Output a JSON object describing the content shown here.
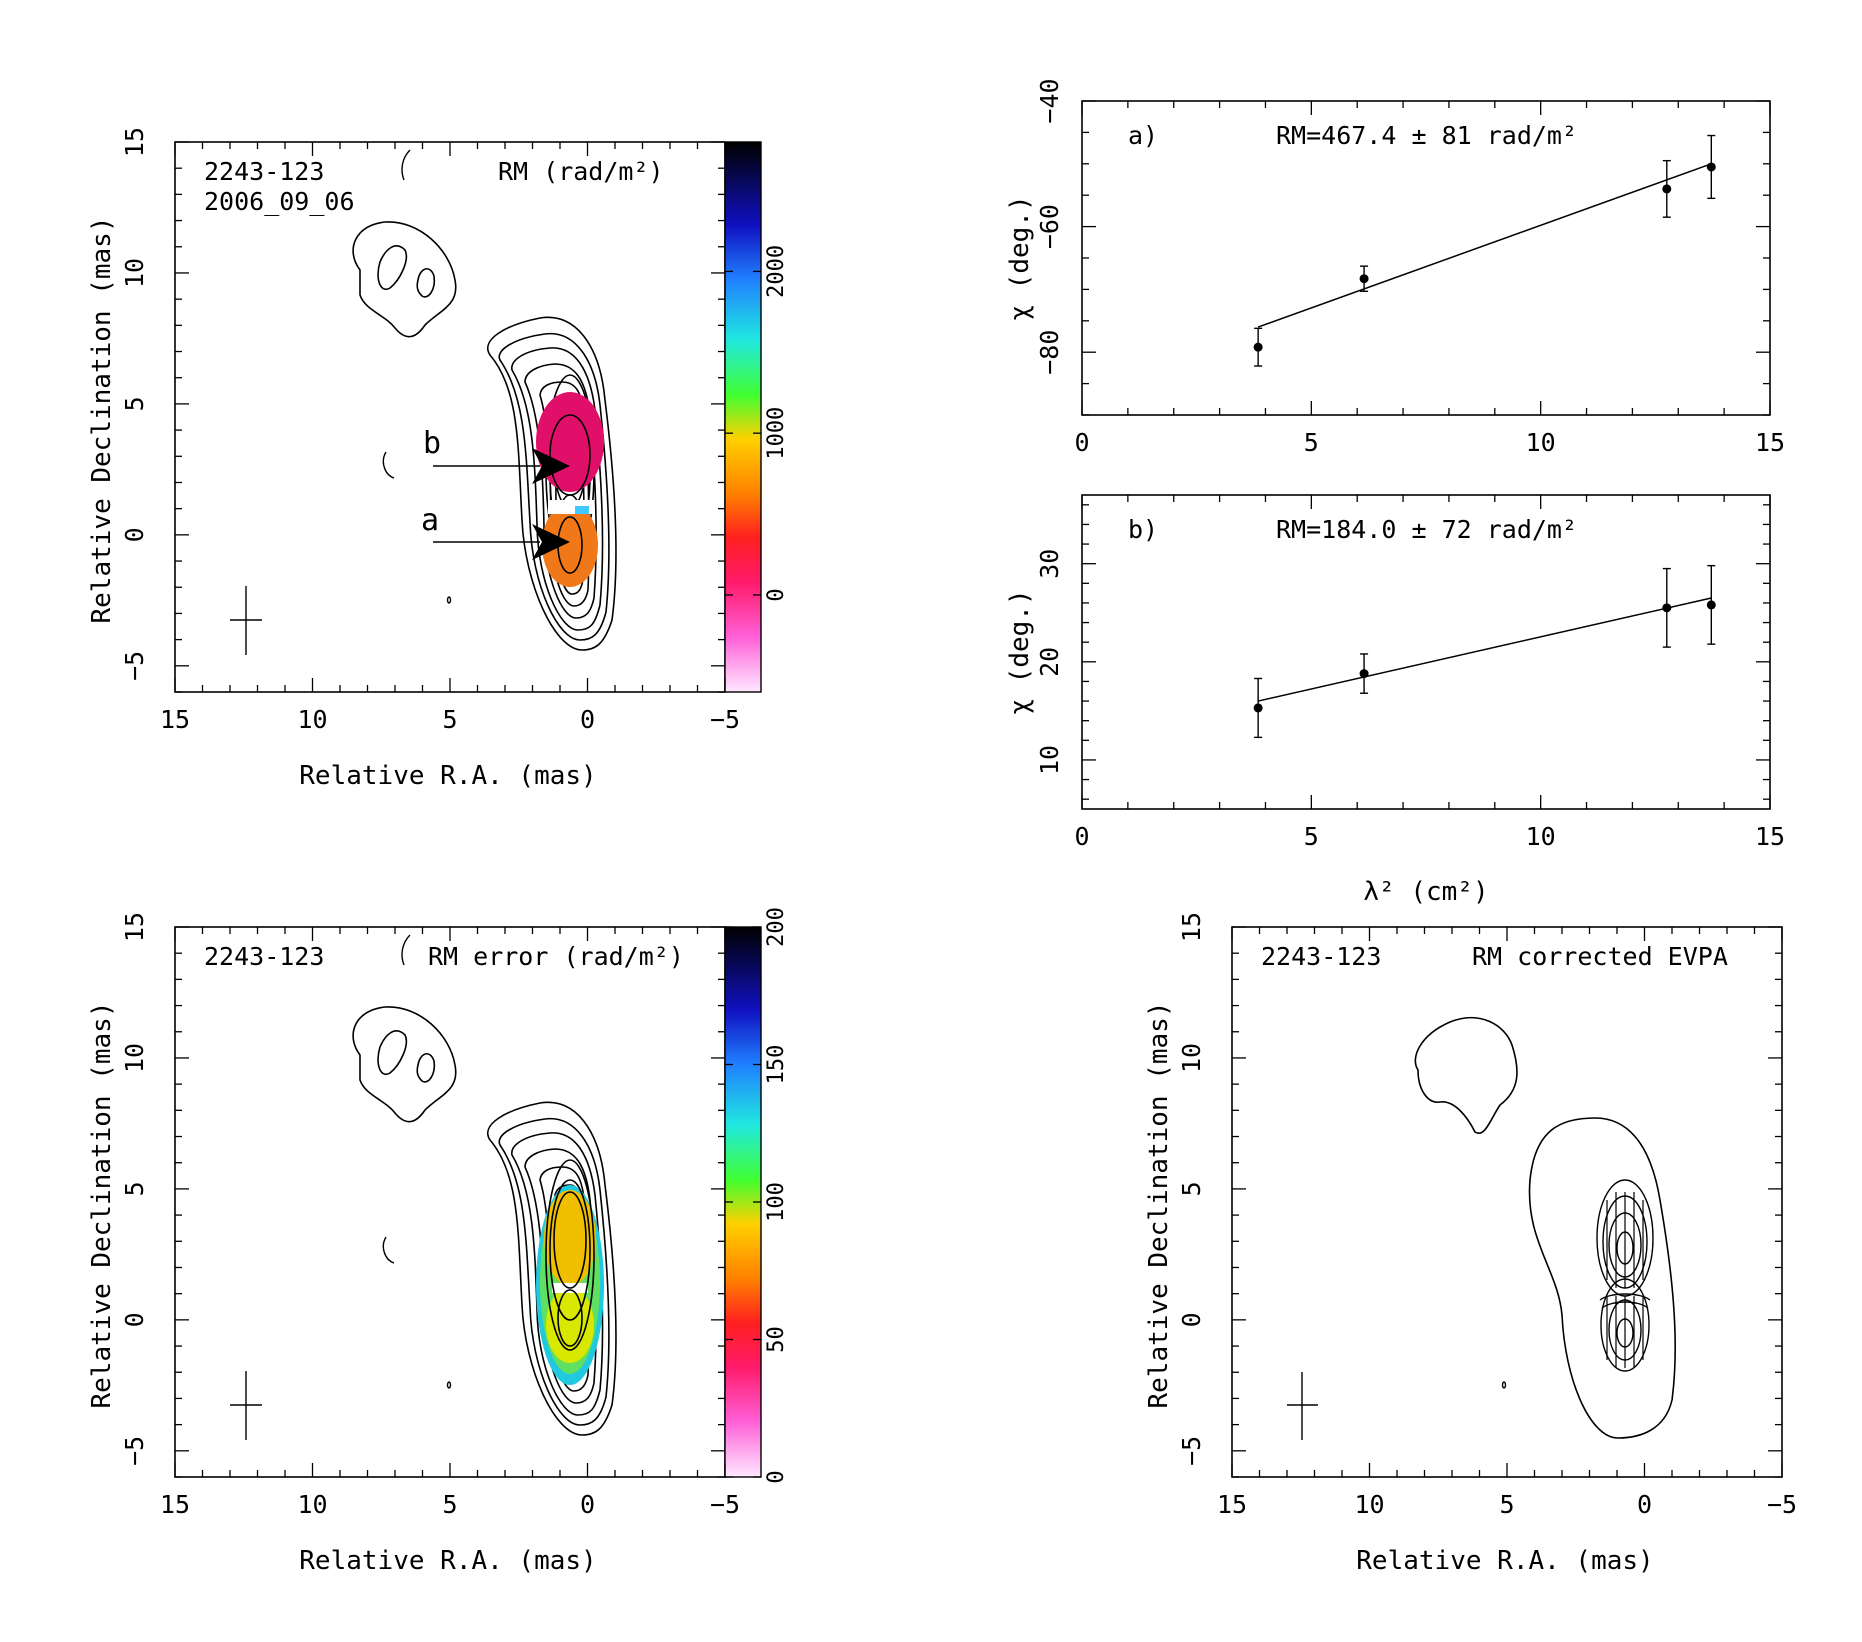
{
  "figure": {
    "source": "2243-123",
    "epoch": "2006_09_06"
  },
  "chart_data": [
    {
      "type": "heatmap",
      "id": "rm_map",
      "source_label": "2243-123",
      "epoch_label": "2006_09_06",
      "quantity_label": "RM (rad/m²)",
      "xlabel": "Relative R.A. (mas)",
      "ylabel": "Relative Declination (mas)",
      "xlim": [
        15,
        -5
      ],
      "ylim": [
        -6,
        15
      ],
      "xticks": [
        15,
        10,
        5,
        0,
        -5
      ],
      "yticks": [
        -5,
        0,
        5,
        10,
        15
      ],
      "colorbar": {
        "range": [
          -600,
          2800
        ],
        "ticks": [
          0,
          1000,
          2000
        ],
        "tick_labels": [
          "0",
          "1000",
          "2000"
        ]
      },
      "annotations": [
        {
          "label": "a",
          "from": [
            5.0,
            -0.2
          ],
          "to": [
            0.0,
            -0.2
          ]
        },
        {
          "label": "b",
          "from": [
            5.0,
            2.6
          ],
          "to": [
            0.0,
            2.6
          ]
        }
      ],
      "regions": [
        {
          "label": "b",
          "rm_color": "#e0106a"
        },
        {
          "label": "a",
          "rm_color": "#f07818"
        }
      ],
      "beam": {
        "x": 12.2,
        "y": -3.2
      }
    },
    {
      "type": "scatter",
      "id": "fit_a",
      "panel_label": "a)",
      "fit_label": "RM=467.4 ± 81 rad/m²",
      "ylabel": "χ (deg.)",
      "xlabel": "",
      "xlim": [
        0,
        15
      ],
      "ylim": [
        -90,
        -40
      ],
      "xticks": [
        0,
        5,
        10,
        15
      ],
      "yticks": [
        -80,
        -60,
        -40
      ],
      "points": [
        {
          "x": 3.84,
          "y": -79.2,
          "err": 3.0
        },
        {
          "x": 6.15,
          "y": -68.3,
          "err": 2.0
        },
        {
          "x": 12.75,
          "y": -54.0,
          "err": 4.5
        },
        {
          "x": 13.72,
          "y": -50.5,
          "err": 5.0
        }
      ],
      "fit_line": [
        [
          3.84,
          -76.0
        ],
        [
          13.72,
          -50.0
        ]
      ]
    },
    {
      "type": "scatter",
      "id": "fit_b",
      "panel_label": "b)",
      "fit_label": "RM=184.0 ± 72 rad/m²",
      "ylabel": "χ (deg.)",
      "xlabel": "λ² (cm²)",
      "xlim": [
        0,
        15
      ],
      "ylim": [
        5,
        37
      ],
      "xticks": [
        0,
        5,
        10,
        15
      ],
      "yticks": [
        10,
        20,
        30
      ],
      "points": [
        {
          "x": 3.84,
          "y": 15.3,
          "err": 3.0
        },
        {
          "x": 6.15,
          "y": 18.8,
          "err": 2.0
        },
        {
          "x": 12.75,
          "y": 25.5,
          "err": 4.0
        },
        {
          "x": 13.72,
          "y": 25.8,
          "err": 4.0
        }
      ],
      "fit_line": [
        [
          3.84,
          16.0
        ],
        [
          13.72,
          26.5
        ]
      ]
    },
    {
      "type": "heatmap",
      "id": "rm_error_map",
      "source_label": "2243-123",
      "quantity_label": "RM error (rad/m²)",
      "xlabel": "Relative R.A. (mas)",
      "ylabel": "Relative Declination (mas)",
      "xlim": [
        15,
        -5
      ],
      "ylim": [
        -6,
        15
      ],
      "xticks": [
        15,
        10,
        5,
        0,
        -5
      ],
      "yticks": [
        -5,
        0,
        5,
        10,
        15
      ],
      "colorbar": {
        "range": [
          0,
          200
        ],
        "ticks": [
          0,
          50,
          100,
          150,
          200
        ],
        "tick_labels": [
          "0",
          "50",
          "100",
          "150",
          "200"
        ]
      },
      "beam": {
        "x": 12.2,
        "y": -3.2
      }
    },
    {
      "type": "heatmap",
      "id": "evpa_map",
      "source_label": "2243-123",
      "quantity_label": "RM corrected EVPA",
      "xlabel": "Relative R.A. (mas)",
      "ylabel": "Relative Declination (mas)",
      "xlim": [
        15,
        -5
      ],
      "ylim": [
        -6,
        15
      ],
      "xticks": [
        15,
        10,
        5,
        0,
        -5
      ],
      "yticks": [
        -5,
        0,
        5,
        10,
        15
      ],
      "beam": {
        "x": 12.2,
        "y": -3.2
      }
    }
  ]
}
